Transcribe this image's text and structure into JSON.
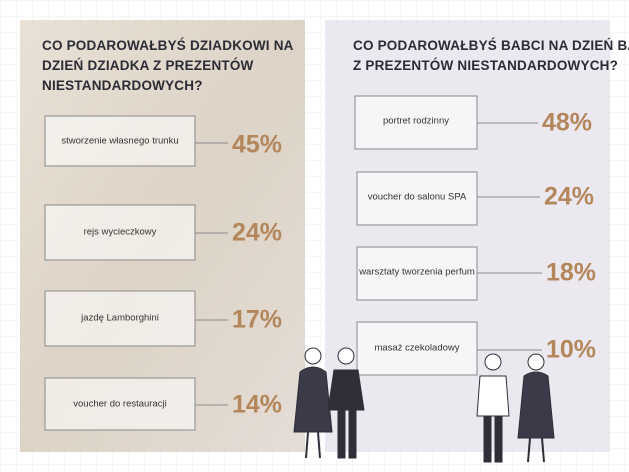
{
  "panels": [
    {
      "title": [
        "CO PODAROWAŁBYŚ DZIADKOWI NA",
        "DZIEŃ DZIADKA Z PREZENTÓW",
        "NIESTANDARDOWYCH?"
      ],
      "items": [
        {
          "label": "stworzenie własnego trunku",
          "value": "45%"
        },
        {
          "label": "rejs wycieczkowy",
          "value": "24%"
        },
        {
          "label": "jazdę Lamborghini",
          "value": "17%"
        },
        {
          "label": "voucher do restauracji",
          "value": "14%"
        }
      ]
    },
    {
      "title": [
        "CO PODAROWAŁBYŚ BABCI NA DZIEŃ BABCI",
        "Z PREZENTÓW NIESTANDARDOWYCH?"
      ],
      "items": [
        {
          "label": "portret rodzinny",
          "value": "48%"
        },
        {
          "label": "voucher do salonu SPA",
          "value": "24%"
        },
        {
          "label": "warsztaty tworzenia perfum",
          "value": "18%"
        },
        {
          "label": "masaż czekoladowy",
          "value": "10%"
        }
      ]
    }
  ]
}
